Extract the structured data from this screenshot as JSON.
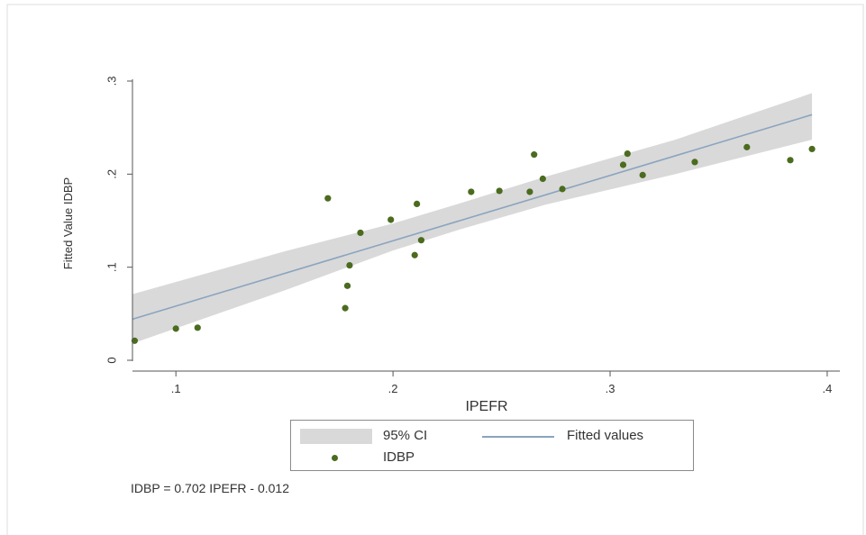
{
  "chart_data": {
    "type": "scatter",
    "xlabel": "IPEFR",
    "ylabel": "Fitted Value IDBP",
    "xlim": [
      0.08,
      0.405
    ],
    "ylim": [
      0.0,
      0.3
    ],
    "x_ticks": [
      0.1,
      0.2,
      0.3,
      0.4
    ],
    "x_tick_labels": [
      ".1",
      ".2",
      ".3",
      ".4"
    ],
    "y_ticks": [
      0.0,
      0.1,
      0.2,
      0.3
    ],
    "y_tick_labels": [
      "0",
      ".1",
      ".2",
      ".3"
    ],
    "grid": false,
    "legend": [
      "95% CI",
      "Fitted values",
      "IDBP"
    ],
    "legend_placement": "bottom",
    "equation": "IDBP = 0.702 IPEFR - 0.012",
    "fit": {
      "slope": 0.702,
      "intercept": -0.012,
      "x_range": [
        0.08,
        0.393
      ]
    },
    "ci_band": {
      "x": [
        0.08,
        0.15,
        0.2,
        0.23,
        0.27,
        0.33,
        0.393
      ],
      "lower": [
        0.018,
        0.075,
        0.118,
        0.14,
        0.167,
        0.2,
        0.237
      ],
      "upper": [
        0.071,
        0.117,
        0.147,
        0.168,
        0.197,
        0.237,
        0.287
      ]
    },
    "series": [
      {
        "name": "IDBP",
        "x": [
          0.081,
          0.1,
          0.11,
          0.17,
          0.178,
          0.179,
          0.18,
          0.185,
          0.199,
          0.21,
          0.211,
          0.213,
          0.236,
          0.249,
          0.263,
          0.265,
          0.269,
          0.278,
          0.306,
          0.308,
          0.315,
          0.339,
          0.363,
          0.383,
          0.393
        ],
        "y": [
          0.021,
          0.034,
          0.035,
          0.174,
          0.056,
          0.08,
          0.102,
          0.137,
          0.151,
          0.113,
          0.168,
          0.129,
          0.181,
          0.182,
          0.181,
          0.221,
          0.195,
          0.184,
          0.21,
          0.222,
          0.199,
          0.213,
          0.229,
          0.215,
          0.227
        ]
      }
    ]
  },
  "colors": {
    "ci": "#d9d9d9",
    "fit_line": "#8aa4bf",
    "points": "#4b6b1e",
    "axis": "#555555"
  }
}
